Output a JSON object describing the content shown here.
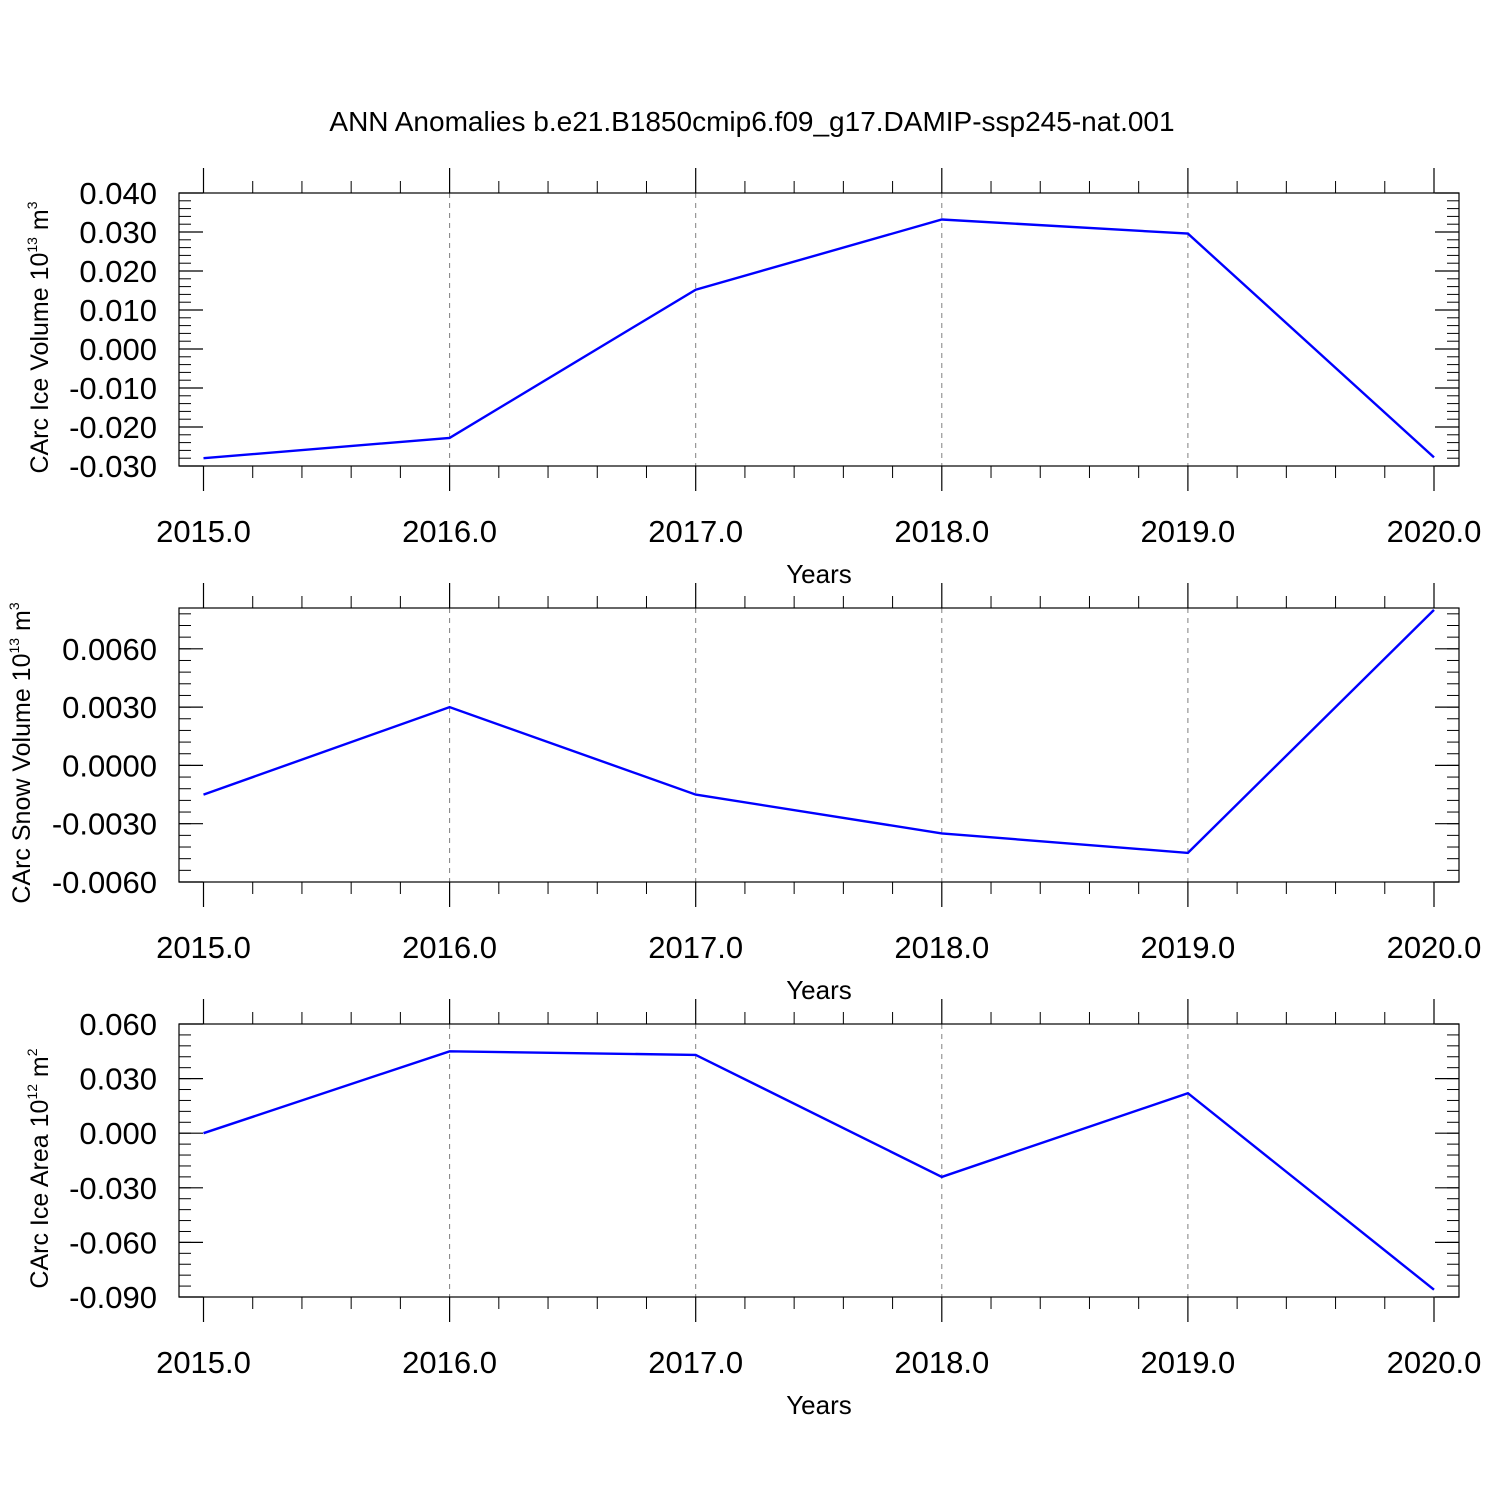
{
  "title": "ANN Anomalies b.e21.B1850cmip6.f09_g17.DAMIP-ssp245-nat.001",
  "colors": {
    "series": "#0000ff",
    "axes": "#000000",
    "grid": "#808080"
  },
  "chart_data": [
    {
      "type": "line",
      "title": "ANN Anomalies b.e21.B1850cmip6.f09_g17.DAMIP-ssp245-nat.001",
      "xlabel": "Years",
      "ylabel": {
        "text": "CArc Ice Volume 10",
        "exp": "13",
        "unit": " m",
        "unit_exp": "3"
      },
      "x": [
        2015,
        2016,
        2017,
        2018,
        2019,
        2020
      ],
      "series": [
        {
          "values": [
            -0.028,
            -0.0228,
            0.0152,
            0.0332,
            0.0296,
            -0.0278
          ]
        }
      ],
      "xlim": [
        2015,
        2020.1
      ],
      "ylim": [
        -0.03,
        0.04
      ],
      "xticks": [
        "2015.0",
        "2016.0",
        "2017.0",
        "2018.0",
        "2019.0",
        "2020.0"
      ],
      "yticks": [
        {
          "v": 0.04,
          "label": "0.040"
        },
        {
          "v": 0.03,
          "label": "0.030"
        },
        {
          "v": 0.02,
          "label": "0.020"
        },
        {
          "v": 0.01,
          "label": "0.010"
        },
        {
          "v": 0.0,
          "label": "0.000"
        },
        {
          "v": -0.01,
          "label": "-0.010"
        },
        {
          "v": -0.02,
          "label": "-0.020"
        },
        {
          "v": -0.03,
          "label": "-0.030"
        }
      ],
      "yminor_step": 0.002,
      "grid": "vertical dashed"
    },
    {
      "type": "line",
      "xlabel": "Years",
      "ylabel": {
        "text": "CArc Snow Volume 10",
        "exp": "13",
        "unit": " m",
        "unit_exp": "3"
      },
      "x": [
        2015,
        2016,
        2017,
        2018,
        2019,
        2020
      ],
      "series": [
        {
          "values": [
            -0.0015,
            0.003,
            -0.0015,
            -0.0035,
            -0.0045,
            0.008
          ]
        }
      ],
      "xlim": [
        2015,
        2020.1
      ],
      "ylim": [
        -0.006,
        0.0081
      ],
      "xticks": [
        "2015.0",
        "2016.0",
        "2017.0",
        "2018.0",
        "2019.0",
        "2020.0"
      ],
      "yticks": [
        {
          "v": 0.006,
          "label": "0.0060"
        },
        {
          "v": 0.003,
          "label": "0.0030"
        },
        {
          "v": 0.0,
          "label": "0.0000"
        },
        {
          "v": -0.003,
          "label": "-0.0030"
        },
        {
          "v": -0.006,
          "label": "-0.0060"
        }
      ],
      "yminor_step": 0.0006,
      "grid": "vertical dashed"
    },
    {
      "type": "line",
      "xlabel": "Years",
      "ylabel": {
        "text": "CArc Ice Area 10",
        "exp": "12",
        "unit": " m",
        "unit_exp": "2"
      },
      "x": [
        2015,
        2016,
        2017,
        2018,
        2019,
        2020
      ],
      "series": [
        {
          "values": [
            0.0,
            0.045,
            0.043,
            -0.024,
            0.022,
            -0.086
          ]
        }
      ],
      "xlim": [
        2015,
        2020.1
      ],
      "ylim": [
        -0.09,
        0.06
      ],
      "xticks": [
        "2015.0",
        "2016.0",
        "2017.0",
        "2018.0",
        "2019.0",
        "2020.0"
      ],
      "yticks": [
        {
          "v": 0.06,
          "label": "0.060"
        },
        {
          "v": 0.03,
          "label": "0.030"
        },
        {
          "v": 0.0,
          "label": "0.000"
        },
        {
          "v": -0.03,
          "label": "-0.030"
        },
        {
          "v": -0.06,
          "label": "-0.060"
        },
        {
          "v": -0.09,
          "label": "-0.090"
        }
      ],
      "yminor_step": 0.006,
      "grid": "vertical dashed"
    }
  ]
}
